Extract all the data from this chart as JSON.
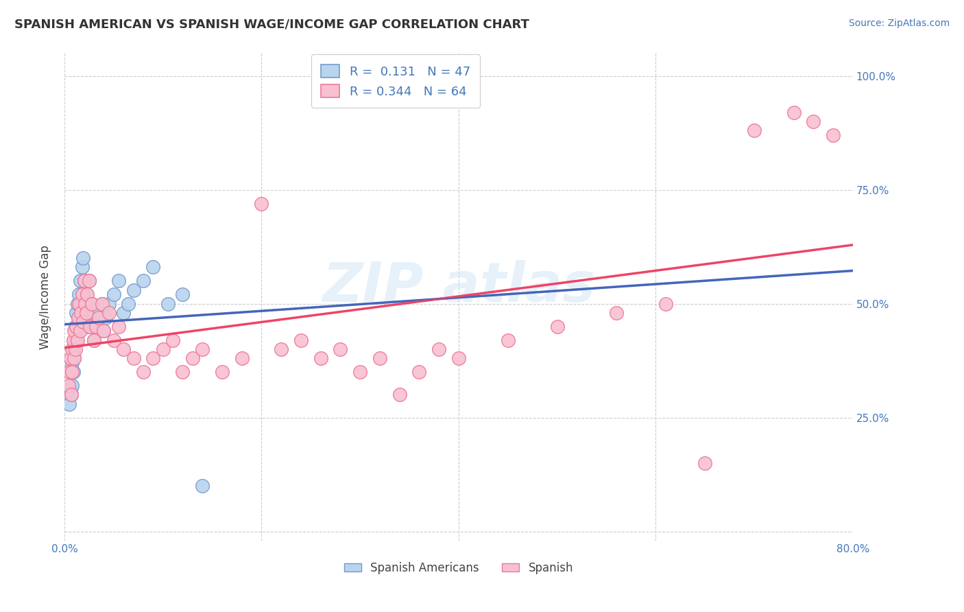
{
  "title": "SPANISH AMERICAN VS SPANISH WAGE/INCOME GAP CORRELATION CHART",
  "source_text": "Source: ZipAtlas.com",
  "ylabel": "Wage/Income Gap",
  "xlim": [
    0.0,
    0.8
  ],
  "ylim": [
    -0.02,
    1.05
  ],
  "x_ticks": [
    0.0,
    0.2,
    0.4,
    0.6,
    0.8
  ],
  "x_tick_labels": [
    "0.0%",
    "",
    "",
    "",
    "80.0%"
  ],
  "y_ticks": [
    0.0,
    0.25,
    0.5,
    0.75,
    1.0
  ],
  "y_tick_labels_right": [
    "",
    "25.0%",
    "50.0%",
    "75.0%",
    "100.0%"
  ],
  "grid_color": "#cccccc",
  "background_color": "#ffffff",
  "series1_color": "#b8d4ee",
  "series1_edge": "#7799cc",
  "series2_color": "#f8c0d0",
  "series2_edge": "#ee7799",
  "line1_color": "#4466bb",
  "line2_color": "#ee4466",
  "R1": 0.131,
  "N1": 47,
  "R2": 0.344,
  "N2": 64,
  "legend_series1": "Spanish Americans",
  "legend_series2": "Spanish",
  "series1_x": [
    0.005,
    0.006,
    0.007,
    0.007,
    0.008,
    0.008,
    0.009,
    0.009,
    0.01,
    0.01,
    0.011,
    0.012,
    0.012,
    0.013,
    0.013,
    0.014,
    0.015,
    0.015,
    0.016,
    0.017,
    0.018,
    0.018,
    0.019,
    0.02,
    0.021,
    0.022,
    0.023,
    0.025,
    0.026,
    0.028,
    0.03,
    0.032,
    0.035,
    0.038,
    0.04,
    0.042,
    0.045,
    0.05,
    0.055,
    0.06,
    0.065,
    0.07,
    0.08,
    0.09,
    0.105,
    0.12,
    0.14
  ],
  "series1_y": [
    0.28,
    0.31,
    0.35,
    0.3,
    0.37,
    0.32,
    0.4,
    0.35,
    0.42,
    0.38,
    0.45,
    0.48,
    0.42,
    0.5,
    0.44,
    0.47,
    0.52,
    0.46,
    0.55,
    0.5,
    0.58,
    0.52,
    0.6,
    0.55,
    0.48,
    0.52,
    0.45,
    0.55,
    0.48,
    0.5,
    0.42,
    0.45,
    0.48,
    0.5,
    0.44,
    0.47,
    0.5,
    0.52,
    0.55,
    0.48,
    0.5,
    0.53,
    0.55,
    0.58,
    0.5,
    0.52,
    0.1
  ],
  "series2_x": [
    0.004,
    0.005,
    0.006,
    0.007,
    0.008,
    0.008,
    0.009,
    0.01,
    0.01,
    0.011,
    0.012,
    0.013,
    0.014,
    0.015,
    0.016,
    0.017,
    0.018,
    0.019,
    0.02,
    0.021,
    0.022,
    0.023,
    0.025,
    0.026,
    0.028,
    0.03,
    0.032,
    0.035,
    0.038,
    0.04,
    0.045,
    0.05,
    0.055,
    0.06,
    0.07,
    0.08,
    0.09,
    0.1,
    0.11,
    0.12,
    0.13,
    0.14,
    0.16,
    0.18,
    0.2,
    0.22,
    0.24,
    0.26,
    0.28,
    0.3,
    0.32,
    0.34,
    0.36,
    0.38,
    0.4,
    0.45,
    0.5,
    0.56,
    0.61,
    0.65,
    0.7,
    0.74,
    0.76,
    0.78
  ],
  "series2_y": [
    0.32,
    0.35,
    0.38,
    0.3,
    0.4,
    0.35,
    0.42,
    0.38,
    0.44,
    0.4,
    0.45,
    0.42,
    0.47,
    0.5,
    0.44,
    0.48,
    0.52,
    0.46,
    0.55,
    0.5,
    0.48,
    0.52,
    0.55,
    0.45,
    0.5,
    0.42,
    0.45,
    0.47,
    0.5,
    0.44,
    0.48,
    0.42,
    0.45,
    0.4,
    0.38,
    0.35,
    0.38,
    0.4,
    0.42,
    0.35,
    0.38,
    0.4,
    0.35,
    0.38,
    0.72,
    0.4,
    0.42,
    0.38,
    0.4,
    0.35,
    0.38,
    0.3,
    0.35,
    0.4,
    0.38,
    0.42,
    0.45,
    0.48,
    0.5,
    0.15,
    0.88,
    0.92,
    0.9,
    0.87
  ]
}
